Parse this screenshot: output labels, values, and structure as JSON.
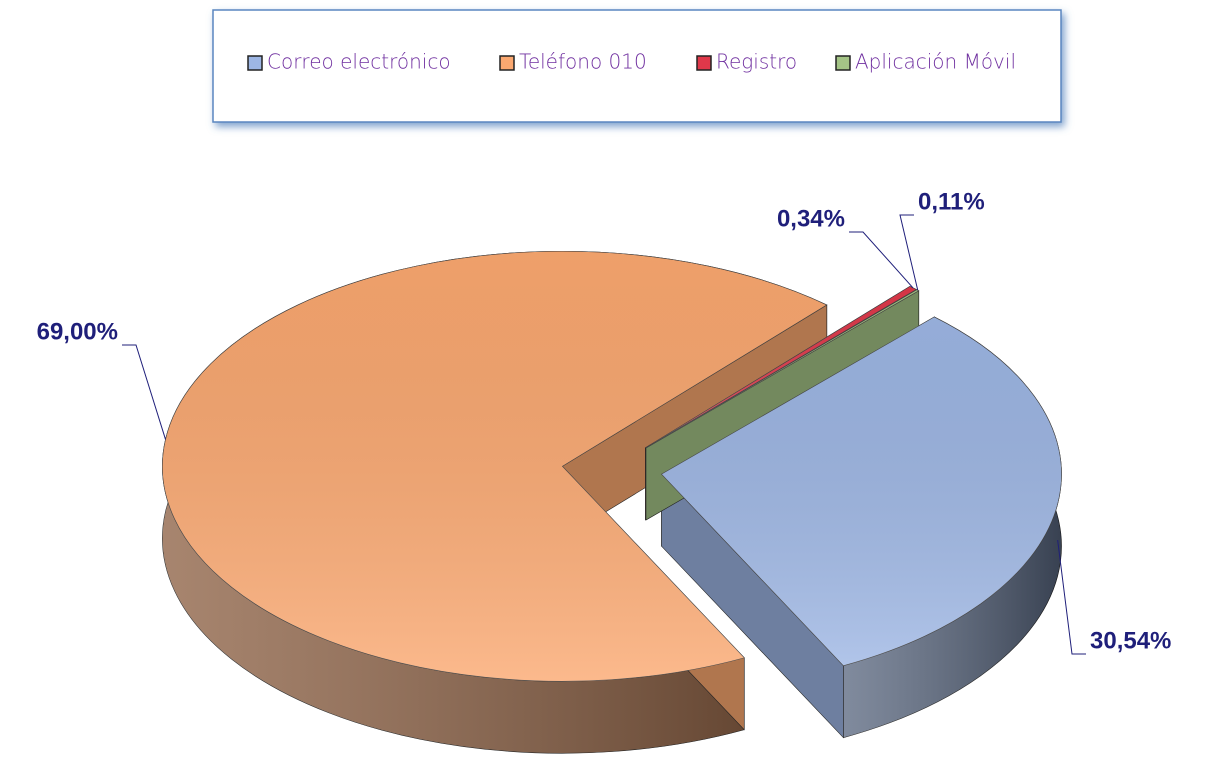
{
  "chart_data": {
    "type": "pie",
    "categories": [
      "Correo electrónico",
      "Teléfono 010",
      "Registro",
      "Aplicación Móvil"
    ],
    "values": [
      30.54,
      69.0,
      0.34,
      0.11
    ],
    "value_labels": [
      "30,54%",
      "69,00%",
      "0,34%",
      "0,11%"
    ],
    "colors": [
      "#9db6e4",
      "#fba870",
      "#e0384a",
      "#a4c486"
    ],
    "legend": "top"
  }
}
